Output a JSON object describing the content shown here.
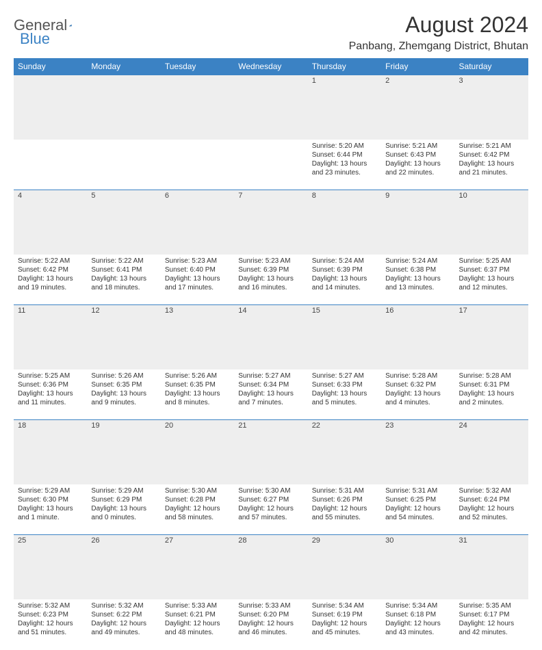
{
  "header": {
    "logo_word1": "General",
    "logo_word2": "Blue",
    "month_title": "August 2024",
    "location": "Panbang, Zhemgang District, Bhutan"
  },
  "colors": {
    "header_bg": "#3b82c4",
    "header_fg": "#ffffff",
    "daynum_bg": "#eeeeee",
    "rule": "#3b82c4",
    "logo_blue": "#3b82c4",
    "text": "#333333"
  },
  "dayNames": [
    "Sunday",
    "Monday",
    "Tuesday",
    "Wednesday",
    "Thursday",
    "Friday",
    "Saturday"
  ],
  "weeks": [
    [
      null,
      null,
      null,
      null,
      {
        "n": "1",
        "sr": "5:20 AM",
        "ss": "6:44 PM",
        "dl": "13 hours and 23 minutes."
      },
      {
        "n": "2",
        "sr": "5:21 AM",
        "ss": "6:43 PM",
        "dl": "13 hours and 22 minutes."
      },
      {
        "n": "3",
        "sr": "5:21 AM",
        "ss": "6:42 PM",
        "dl": "13 hours and 21 minutes."
      }
    ],
    [
      {
        "n": "4",
        "sr": "5:22 AM",
        "ss": "6:42 PM",
        "dl": "13 hours and 19 minutes."
      },
      {
        "n": "5",
        "sr": "5:22 AM",
        "ss": "6:41 PM",
        "dl": "13 hours and 18 minutes."
      },
      {
        "n": "6",
        "sr": "5:23 AM",
        "ss": "6:40 PM",
        "dl": "13 hours and 17 minutes."
      },
      {
        "n": "7",
        "sr": "5:23 AM",
        "ss": "6:39 PM",
        "dl": "13 hours and 16 minutes."
      },
      {
        "n": "8",
        "sr": "5:24 AM",
        "ss": "6:39 PM",
        "dl": "13 hours and 14 minutes."
      },
      {
        "n": "9",
        "sr": "5:24 AM",
        "ss": "6:38 PM",
        "dl": "13 hours and 13 minutes."
      },
      {
        "n": "10",
        "sr": "5:25 AM",
        "ss": "6:37 PM",
        "dl": "13 hours and 12 minutes."
      }
    ],
    [
      {
        "n": "11",
        "sr": "5:25 AM",
        "ss": "6:36 PM",
        "dl": "13 hours and 11 minutes."
      },
      {
        "n": "12",
        "sr": "5:26 AM",
        "ss": "6:35 PM",
        "dl": "13 hours and 9 minutes."
      },
      {
        "n": "13",
        "sr": "5:26 AM",
        "ss": "6:35 PM",
        "dl": "13 hours and 8 minutes."
      },
      {
        "n": "14",
        "sr": "5:27 AM",
        "ss": "6:34 PM",
        "dl": "13 hours and 7 minutes."
      },
      {
        "n": "15",
        "sr": "5:27 AM",
        "ss": "6:33 PM",
        "dl": "13 hours and 5 minutes."
      },
      {
        "n": "16",
        "sr": "5:28 AM",
        "ss": "6:32 PM",
        "dl": "13 hours and 4 minutes."
      },
      {
        "n": "17",
        "sr": "5:28 AM",
        "ss": "6:31 PM",
        "dl": "13 hours and 2 minutes."
      }
    ],
    [
      {
        "n": "18",
        "sr": "5:29 AM",
        "ss": "6:30 PM",
        "dl": "13 hours and 1 minute."
      },
      {
        "n": "19",
        "sr": "5:29 AM",
        "ss": "6:29 PM",
        "dl": "13 hours and 0 minutes."
      },
      {
        "n": "20",
        "sr": "5:30 AM",
        "ss": "6:28 PM",
        "dl": "12 hours and 58 minutes."
      },
      {
        "n": "21",
        "sr": "5:30 AM",
        "ss": "6:27 PM",
        "dl": "12 hours and 57 minutes."
      },
      {
        "n": "22",
        "sr": "5:31 AM",
        "ss": "6:26 PM",
        "dl": "12 hours and 55 minutes."
      },
      {
        "n": "23",
        "sr": "5:31 AM",
        "ss": "6:25 PM",
        "dl": "12 hours and 54 minutes."
      },
      {
        "n": "24",
        "sr": "5:32 AM",
        "ss": "6:24 PM",
        "dl": "12 hours and 52 minutes."
      }
    ],
    [
      {
        "n": "25",
        "sr": "5:32 AM",
        "ss": "6:23 PM",
        "dl": "12 hours and 51 minutes."
      },
      {
        "n": "26",
        "sr": "5:32 AM",
        "ss": "6:22 PM",
        "dl": "12 hours and 49 minutes."
      },
      {
        "n": "27",
        "sr": "5:33 AM",
        "ss": "6:21 PM",
        "dl": "12 hours and 48 minutes."
      },
      {
        "n": "28",
        "sr": "5:33 AM",
        "ss": "6:20 PM",
        "dl": "12 hours and 46 minutes."
      },
      {
        "n": "29",
        "sr": "5:34 AM",
        "ss": "6:19 PM",
        "dl": "12 hours and 45 minutes."
      },
      {
        "n": "30",
        "sr": "5:34 AM",
        "ss": "6:18 PM",
        "dl": "12 hours and 43 minutes."
      },
      {
        "n": "31",
        "sr": "5:35 AM",
        "ss": "6:17 PM",
        "dl": "12 hours and 42 minutes."
      }
    ]
  ],
  "labels": {
    "sunrise": "Sunrise:",
    "sunset": "Sunset:",
    "daylight": "Daylight:"
  }
}
